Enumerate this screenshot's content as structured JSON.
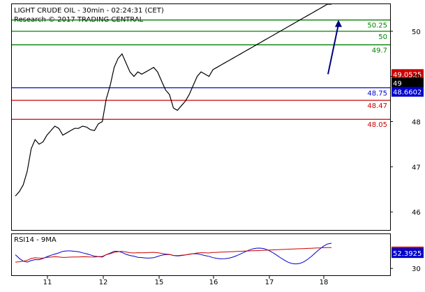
{
  "header": {
    "title": "LIGHT CRUDE OIL - 30min - 02:24:31 (CET)",
    "copyright": "Research © 2017 TRADING CENTRAL"
  },
  "colors": {
    "green_level": "#008000",
    "blue_level": "#0000cc",
    "red_level": "#cc0000",
    "price": "#000000",
    "bollinger": "#cc0000",
    "moving_average": "#0000cc",
    "arrow": "#000080",
    "last_price_tag": "#cc0000",
    "current_tag": "#000000",
    "blue_tag": "#0000cc",
    "rsi_line": "#0000cc",
    "rsi_ma_line": "#cc0000",
    "rsi_ma_tag": "#cc0000",
    "rsi_tag": "#0000cc"
  },
  "chart_data": [
    {
      "type": "line",
      "title": "LIGHT CRUDE OIL - 30min - 02:24:31 (CET)",
      "x_ticks": [
        "11",
        "12",
        "15",
        "16",
        "17",
        "18"
      ],
      "y_ticks": [
        46,
        47,
        48,
        49,
        50
      ],
      "ylim": [
        45.6,
        50.6
      ],
      "levels": [
        {
          "label": "50.25",
          "value": 50.25,
          "color": "green"
        },
        {
          "label": "50",
          "value": 50.0,
          "color": "green"
        },
        {
          "label": "49.7",
          "value": 49.7,
          "color": "green"
        },
        {
          "label": "48.75",
          "value": 48.75,
          "color": "blue"
        },
        {
          "label": "48.47",
          "value": 48.47,
          "color": "red"
        },
        {
          "label": "48.05",
          "value": 48.05,
          "color": "red"
        }
      ],
      "price_tags": [
        {
          "label": "49.0525",
          "value": 49.0525,
          "color": "red"
        },
        {
          "label": "49",
          "value": 48.86,
          "color": "black"
        },
        {
          "label": "48.6602",
          "value": 48.66,
          "color": "blue"
        }
      ],
      "series": [
        {
          "type": "price",
          "x": [
            0,
            2,
            4,
            6,
            8,
            10,
            12,
            14,
            16,
            18,
            20,
            22,
            24,
            26,
            28,
            30,
            32,
            34,
            36,
            38,
            40,
            42,
            44,
            46,
            48,
            50,
            52,
            54,
            56,
            58,
            60,
            62,
            64,
            66,
            68,
            70,
            72,
            74,
            76,
            78,
            80,
            82,
            84,
            86,
            88,
            90,
            92,
            94,
            96,
            98,
            100,
            102,
            104,
            106,
            108,
            110,
            112,
            114,
            116,
            118,
            120,
            122,
            124,
            126,
            128,
            130,
            132,
            134,
            136,
            138,
            140,
            142,
            144,
            146,
            148,
            150,
            152,
            154,
            156,
            158,
            160
          ],
          "values": [
            46.35,
            46.45,
            46.6,
            46.9,
            47.4,
            47.6,
            47.5,
            47.55,
            47.7,
            47.8,
            47.9,
            47.85,
            47.7,
            47.75,
            47.8,
            47.85,
            47.85,
            47.9,
            47.88,
            47.82,
            47.8,
            47.95,
            48.0,
            48.5,
            48.8,
            49.2,
            49.4,
            49.5,
            49.3,
            49.1,
            49.0,
            49.1,
            49.05,
            49.1,
            49.15,
            49.2,
            49.1,
            48.9,
            48.7,
            48.6,
            48.3,
            48.25,
            48.35,
            48.45,
            48.6,
            48.8,
            49.0,
            49.1,
            49.05,
            49.0,
            49.15,
            49.2,
            49.25,
            49.3,
            49.35,
            49.4,
            49.45,
            49.5,
            49.55,
            49.6,
            49.65,
            49.7,
            49.75,
            49.8,
            49.85,
            49.9,
            49.95,
            50.0,
            50.05,
            50.1,
            50.15,
            50.2,
            50.25,
            50.3,
            50.35,
            50.4,
            50.45,
            50.5,
            50.55,
            50.6,
            50.6
          ]
        }
      ],
      "arrow": {
        "from": 49.05,
        "to": 50.25
      }
    },
    {
      "type": "line",
      "title": "RSI14 - 9MA",
      "x_ticks": [
        "11",
        "12",
        "15",
        "16",
        "17",
        "18"
      ],
      "y_ticks": [
        30
      ],
      "ylim": [
        20,
        80
      ],
      "price_tags": [
        {
          "label": "54.6719",
          "value": 54.67,
          "color": "red"
        },
        {
          "label": "52.3925",
          "value": 52.39,
          "color": "blue"
        }
      ]
    }
  ]
}
